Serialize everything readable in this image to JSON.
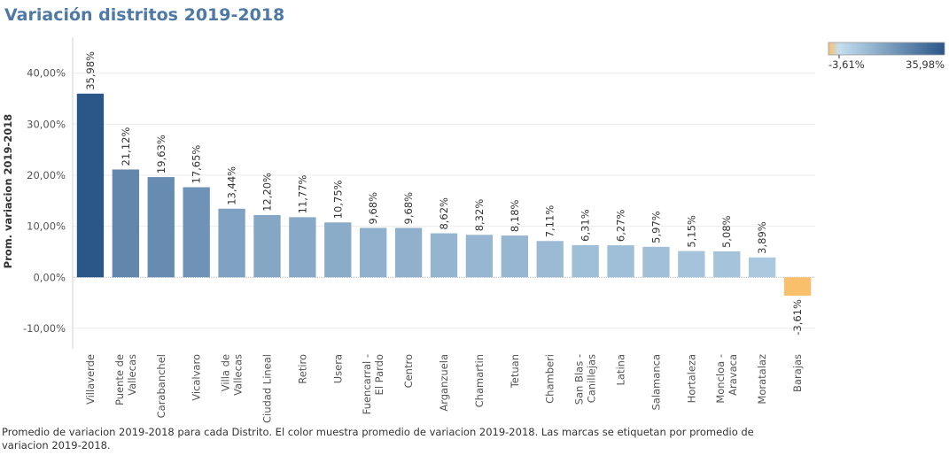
{
  "title": "Variación distritos 2019-2018",
  "caption": "Promedio de variacion 2019-2018 para cada Distrito.  El color muestra promedio de variacion 2019-2018.  Las marcas se etiquetan por promedio de variacion 2019-2018.",
  "legend": {
    "min_label": "-3,61%",
    "max_label": "35,98%",
    "color_neg": "#f9bf6b",
    "color_low": "#c5dff0",
    "color_high": "#2a5688"
  },
  "chart_data": {
    "type": "bar",
    "ylabel": "Prom. variacion 2019-2018",
    "ylim": [
      -14,
      46
    ],
    "yticks": [
      -10,
      0,
      10,
      20,
      30,
      40
    ],
    "ytick_labels": [
      "-10,00%",
      "0,00%",
      "10,00%",
      "20,00%",
      "30,00%",
      "40,00%"
    ],
    "categories": [
      [
        "Villaverde"
      ],
      [
        "Puente de",
        "Vallecas"
      ],
      [
        "Carabanchel"
      ],
      [
        "Vicalvaro"
      ],
      [
        "Villa de",
        "Vallecas"
      ],
      [
        "Ciudad Lineal"
      ],
      [
        "Retiro"
      ],
      [
        "Usera"
      ],
      [
        "Fuencarral -",
        "El Pardo"
      ],
      [
        "Centro"
      ],
      [
        "Arganzuela"
      ],
      [
        "Chamartin"
      ],
      [
        "Tetuan"
      ],
      [
        "Chamberi"
      ],
      [
        "San Blas -",
        "Canillejas"
      ],
      [
        "Latina"
      ],
      [
        "Salamanca"
      ],
      [
        "Hortaleza"
      ],
      [
        "Moncloa -",
        "Aravaca"
      ],
      [
        "Moratalaz"
      ],
      [
        "Barajas"
      ]
    ],
    "values": [
      35.98,
      21.12,
      19.63,
      17.65,
      13.44,
      12.2,
      11.77,
      10.75,
      9.68,
      9.68,
      8.62,
      8.32,
      8.18,
      7.11,
      6.31,
      6.27,
      5.97,
      5.15,
      5.08,
      3.89,
      -3.61
    ],
    "value_labels": [
      "35,98%",
      "21,12%",
      "19,63%",
      "17,65%",
      "13,44%",
      "12,20%",
      "11,77%",
      "10,75%",
      "9,68%",
      "9,68%",
      "8,62%",
      "8,32%",
      "8,18%",
      "7,11%",
      "6,31%",
      "6,27%",
      "5,97%",
      "5,15%",
      "5,08%",
      "3,89%",
      "-3,61%"
    ],
    "grid": true
  }
}
